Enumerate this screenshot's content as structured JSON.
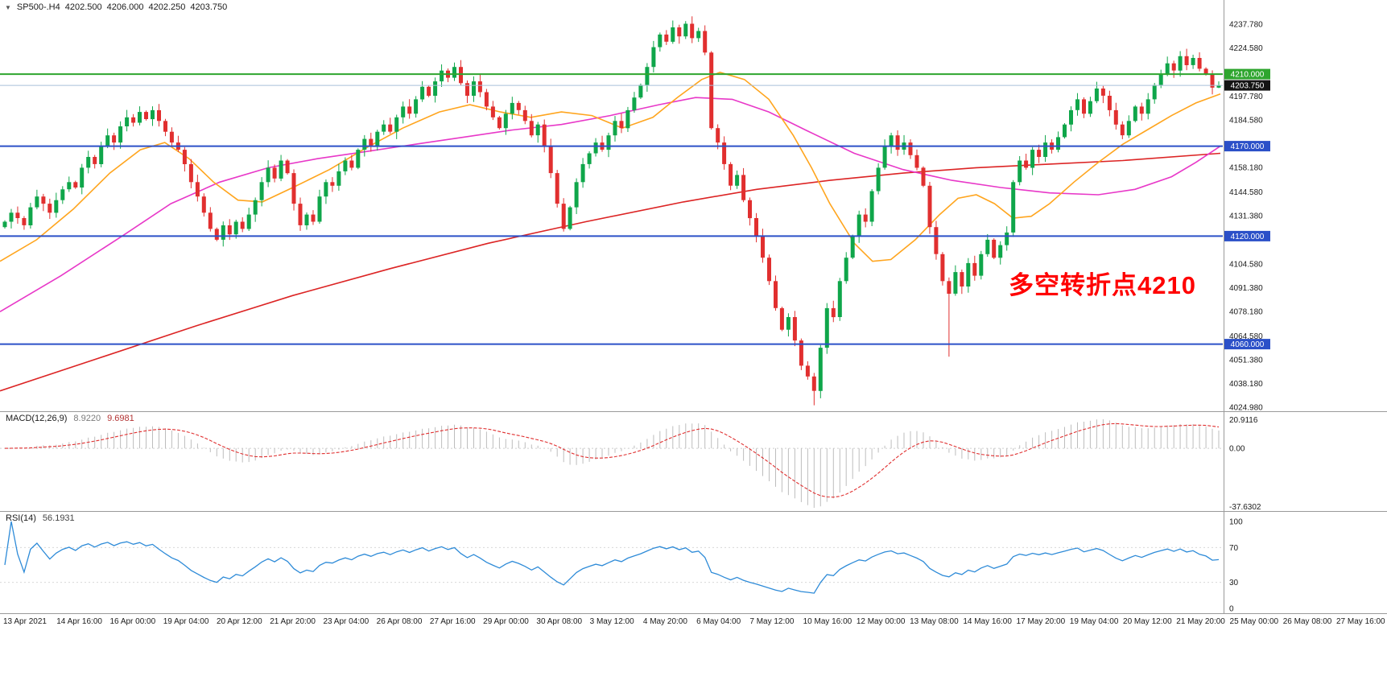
{
  "header": {
    "marker_icon": "▼",
    "symbol_period": "SP500-.H4",
    "open": "4202.500",
    "high": "4206.000",
    "low": "4202.250",
    "close": "4203.750"
  },
  "main_chart": {
    "annotation": {
      "text": "多空转折点4210",
      "color": "#FF0000"
    },
    "price_axis": {
      "labels": [
        {
          "text": "4237.780",
          "price": 4237.78,
          "badge": "none"
        },
        {
          "text": "4224.580",
          "price": 4224.58,
          "badge": "none"
        },
        {
          "text": "4210.000",
          "price": 4210.0,
          "badge": "green"
        },
        {
          "text": "4203.750",
          "price": 4203.75,
          "badge": "black"
        },
        {
          "text": "4197.780",
          "price": 4197.78,
          "badge": "none"
        },
        {
          "text": "4184.580",
          "price": 4184.58,
          "badge": "none"
        },
        {
          "text": "4170.000",
          "price": 4170.0,
          "badge": "blue"
        },
        {
          "text": "4158.180",
          "price": 4158.18,
          "badge": "none"
        },
        {
          "text": "4144.580",
          "price": 4144.58,
          "badge": "none"
        },
        {
          "text": "4131.380",
          "price": 4131.38,
          "badge": "none"
        },
        {
          "text": "4120.000",
          "price": 4120.0,
          "badge": "blue"
        },
        {
          "text": "4104.580",
          "price": 4104.58,
          "badge": "none"
        },
        {
          "text": "4091.380",
          "price": 4091.38,
          "badge": "none"
        },
        {
          "text": "4078.180",
          "price": 4078.18,
          "badge": "none"
        },
        {
          "text": "4064.580",
          "price": 4064.58,
          "badge": "none"
        },
        {
          "text": "4060.000",
          "price": 4060.0,
          "badge": "blue"
        },
        {
          "text": "4051.380",
          "price": 4051.38,
          "badge": "none"
        },
        {
          "text": "4038.180",
          "price": 4038.18,
          "badge": "none"
        },
        {
          "text": "4024.980",
          "price": 4024.98,
          "badge": "none"
        }
      ]
    }
  },
  "macd_panel": {
    "label": "MACD(12,26,9)",
    "value1": "8.9220",
    "value2": "9.6981",
    "axis_max_label": "20.9116",
    "axis_zero_label": "0.00",
    "axis_min_label": "-37.6302"
  },
  "rsi_panel": {
    "label": "RSI(14)",
    "value": "56.1931",
    "axis": [
      {
        "text": "100",
        "value": 100
      },
      {
        "text": "70",
        "value": 70
      },
      {
        "text": "30",
        "value": 30
      },
      {
        "text": "0",
        "value": 0
      }
    ]
  },
  "colors": {
    "up": "#0FA64A",
    "down": "#E12F2F",
    "ma_fast_orange": "#FFA51E",
    "ma_mid_magenta": "#E838C8",
    "ma_slow_red": "#DC2424",
    "hline_blue": "#2B50C8",
    "hline_green": "#2EA52E",
    "current_price_line": "#A9BFD9",
    "macd_hist": "#BDBDBD",
    "macd_signal": "#E03030",
    "rsi": "#2E8BD8",
    "badge_green": "#2EA52E",
    "badge_black": "#141414",
    "badge_blue": "#2B50C8"
  },
  "chart_data": {
    "type": "candlestick",
    "symbol": "SP500-",
    "timeframe": "H4",
    "price_scale": {
      "top": 4237.78,
      "bottom": 4024.98
    },
    "current_bar_ohlc": {
      "open": 4202.5,
      "high": 4206.0,
      "low": 4202.25,
      "close": 4203.75
    },
    "first_open": 4125,
    "closes": [
      4128,
      4133,
      4130,
      4126,
      4136,
      4142,
      4138,
      4133,
      4140,
      4146,
      4150,
      4147,
      4158,
      4164,
      4160,
      4170,
      4176,
      4172,
      4181,
      4186,
      4183,
      4189,
      4185,
      4190,
      4184,
      4178,
      4172,
      4168,
      4160,
      4150,
      4142,
      4133,
      4124,
      4118,
      4126,
      4121,
      4128,
      4124,
      4132,
      4140,
      4150,
      4158,
      4152,
      4162,
      4155,
      4138,
      4126,
      4132,
      4128,
      4142,
      4150,
      4148,
      4156,
      4162,
      4158,
      4168,
      4174,
      4170,
      4178,
      4182,
      4178,
      4186,
      4192,
      4188,
      4196,
      4203,
      4198,
      4206,
      4212,
      4208,
      4214,
      4205,
      4198,
      4206,
      4200,
      4192,
      4186,
      4180,
      4188,
      4194,
      4190,
      4184,
      4176,
      4182,
      4170,
      4155,
      4138,
      4124,
      4136,
      4150,
      4160,
      4166,
      4172,
      4168,
      4176,
      4184,
      4180,
      4190,
      4197,
      4204,
      4214,
      4225,
      4232,
      4228,
      4236,
      4231,
      4238,
      4230,
      4234,
      4222,
      4180,
      4172,
      4160,
      4148,
      4154,
      4140,
      4130,
      4120,
      4108,
      4095,
      4080,
      4068,
      4075,
      4062,
      4048,
      4042,
      4034,
      4058,
      4080,
      4075,
      4095,
      4108,
      4120,
      4132,
      4128,
      4145,
      4158,
      4170,
      4176,
      4168,
      4172,
      4165,
      4158,
      4148,
      4125,
      4110,
      4095,
      4088,
      4100,
      4092,
      4105,
      4098,
      4110,
      4118,
      4108,
      4115,
      4122,
      4150,
      4162,
      4158,
      4168,
      4164,
      4172,
      4168,
      4175,
      4182,
      4190,
      4196,
      4188,
      4195,
      4202,
      4198,
      4190,
      4182,
      4176,
      4184,
      4192,
      4188,
      4196,
      4204,
      4210,
      4216,
      4212,
      4220,
      4215,
      4219,
      4213,
      4210,
      4202.5,
      4203.75
    ],
    "wick_overrides": {
      "106": [
        4239.5,
        4229.5
      ],
      "126": [
        4044,
        4026
      ],
      "147": [
        4097,
        4053
      ],
      "189": [
        4206,
        4202.25
      ]
    },
    "hlines": [
      {
        "price": 4210.0,
        "color": "#2EA52E",
        "width": 2,
        "label": "4210.000"
      },
      {
        "price": 4203.75,
        "color": "#A9BFD9",
        "width": 1,
        "label": "4203.750"
      },
      {
        "price": 4170.0,
        "color": "#2B50C8",
        "width": 2,
        "label": "4170.000"
      },
      {
        "price": 4120.0,
        "color": "#2B50C8",
        "width": 2,
        "label": "4120.000"
      },
      {
        "price": 4060.0,
        "color": "#2B50C8",
        "width": 2,
        "label": "4060.000"
      }
    ],
    "moving_averages": [
      {
        "name": "ma-slow-red",
        "color": "#DC2424",
        "points": [
          [
            0,
            4034
          ],
          [
            0.08,
            4052
          ],
          [
            0.16,
            4070
          ],
          [
            0.24,
            4087
          ],
          [
            0.32,
            4102
          ],
          [
            0.4,
            4116
          ],
          [
            0.48,
            4128
          ],
          [
            0.56,
            4139
          ],
          [
            0.62,
            4146
          ],
          [
            0.68,
            4151
          ],
          [
            0.74,
            4155
          ],
          [
            0.8,
            4158
          ],
          [
            0.86,
            4160
          ],
          [
            0.92,
            4162
          ],
          [
            1.0,
            4166
          ]
        ]
      },
      {
        "name": "ma-mid-magenta",
        "color": "#E838C8",
        "points": [
          [
            0,
            4078
          ],
          [
            0.05,
            4098
          ],
          [
            0.1,
            4120
          ],
          [
            0.14,
            4138
          ],
          [
            0.18,
            4150
          ],
          [
            0.22,
            4158
          ],
          [
            0.26,
            4163
          ],
          [
            0.3,
            4167
          ],
          [
            0.34,
            4171
          ],
          [
            0.38,
            4175
          ],
          [
            0.42,
            4179
          ],
          [
            0.46,
            4182
          ],
          [
            0.5,
            4187
          ],
          [
            0.54,
            4193
          ],
          [
            0.57,
            4197
          ],
          [
            0.6,
            4196
          ],
          [
            0.63,
            4189
          ],
          [
            0.66,
            4179
          ],
          [
            0.7,
            4166
          ],
          [
            0.74,
            4157
          ],
          [
            0.78,
            4151
          ],
          [
            0.82,
            4147
          ],
          [
            0.86,
            4144
          ],
          [
            0.9,
            4143
          ],
          [
            0.93,
            4146
          ],
          [
            0.96,
            4153
          ],
          [
            0.98,
            4161
          ],
          [
            1.0,
            4170
          ]
        ]
      },
      {
        "name": "ma-fast-orange",
        "color": "#FFA51E",
        "points": [
          [
            0,
            4106
          ],
          [
            0.03,
            4118
          ],
          [
            0.06,
            4135
          ],
          [
            0.09,
            4155
          ],
          [
            0.115,
            4168
          ],
          [
            0.135,
            4172
          ],
          [
            0.155,
            4163
          ],
          [
            0.175,
            4150
          ],
          [
            0.195,
            4140
          ],
          [
            0.215,
            4139
          ],
          [
            0.24,
            4147
          ],
          [
            0.27,
            4157
          ],
          [
            0.3,
            4169
          ],
          [
            0.33,
            4180
          ],
          [
            0.36,
            4189
          ],
          [
            0.385,
            4193
          ],
          [
            0.41,
            4189
          ],
          [
            0.435,
            4186
          ],
          [
            0.46,
            4189
          ],
          [
            0.485,
            4187
          ],
          [
            0.51,
            4180
          ],
          [
            0.535,
            4186
          ],
          [
            0.555,
            4197
          ],
          [
            0.575,
            4207
          ],
          [
            0.59,
            4211
          ],
          [
            0.61,
            4207
          ],
          [
            0.63,
            4196
          ],
          [
            0.65,
            4176
          ],
          [
            0.665,
            4158
          ],
          [
            0.68,
            4138
          ],
          [
            0.7,
            4116
          ],
          [
            0.715,
            4106
          ],
          [
            0.73,
            4107
          ],
          [
            0.75,
            4118
          ],
          [
            0.77,
            4132
          ],
          [
            0.785,
            4141
          ],
          [
            0.8,
            4143
          ],
          [
            0.815,
            4138
          ],
          [
            0.83,
            4130
          ],
          [
            0.845,
            4131
          ],
          [
            0.86,
            4138
          ],
          [
            0.88,
            4150
          ],
          [
            0.9,
            4161
          ],
          [
            0.92,
            4171
          ],
          [
            0.94,
            4179
          ],
          [
            0.96,
            4187
          ],
          [
            0.98,
            4194
          ],
          [
            1.0,
            4199
          ]
        ]
      }
    ],
    "macd": {
      "fast": 12,
      "slow": 26,
      "signal": 9,
      "current_macd": 8.922,
      "current_signal": 9.6981,
      "axis_max": 20.9116,
      "axis_min": -37.6302
    },
    "rsi": {
      "period": 14,
      "current": 56.1931,
      "levels": [
        70,
        30
      ],
      "range": [
        0,
        100
      ]
    },
    "x_labels": [
      "13 Apr 2021",
      "14 Apr 16:00",
      "16 Apr 00:00",
      "19 Apr 04:00",
      "20 Apr 12:00",
      "21 Apr 20:00",
      "23 Apr 04:00",
      "26 Apr 08:00",
      "27 Apr 16:00",
      "29 Apr 00:00",
      "30 Apr 08:00",
      "3 May 12:00",
      "4 May 20:00",
      "6 May 04:00",
      "7 May 12:00",
      "10 May 16:00",
      "12 May 00:00",
      "13 May 08:00",
      "14 May 16:00",
      "17 May 20:00",
      "19 May 04:00",
      "20 May 12:00",
      "21 May 20:00",
      "25 May 00:00",
      "26 May 08:00",
      "27 May 16:00"
    ]
  }
}
